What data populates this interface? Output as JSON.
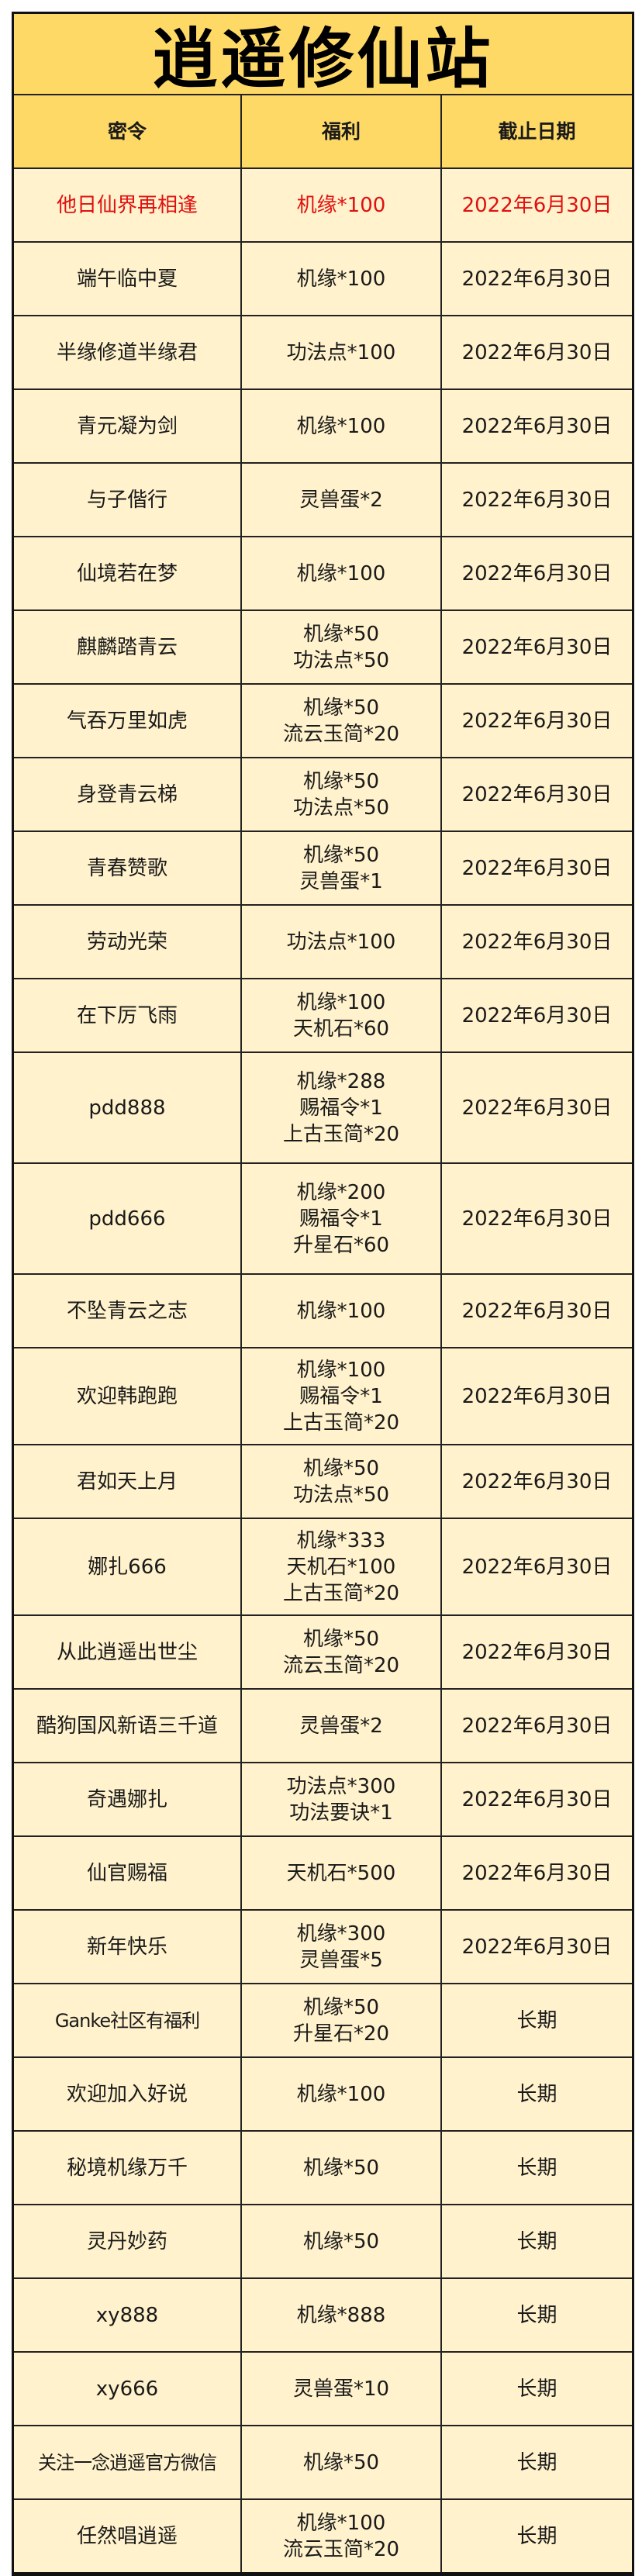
{
  "title": "逍遥修仙站",
  "headers": {
    "code": "密令",
    "reward": "福利",
    "deadline": "截止日期"
  },
  "colors": {
    "title_bg": "#FFD966",
    "row_bg": "#FFF2CC",
    "highlight_text": "#E01010"
  },
  "rows": [
    {
      "code": "他日仙界再相逢",
      "rewards": [
        "机缘*100"
      ],
      "deadline": "2022年6月30日",
      "highlight": true
    },
    {
      "code": "端午临中夏",
      "rewards": [
        "机缘*100"
      ],
      "deadline": "2022年6月30日"
    },
    {
      "code": "半缘修道半缘君",
      "rewards": [
        "功法点*100"
      ],
      "deadline": "2022年6月30日"
    },
    {
      "code": "青元凝为剑",
      "rewards": [
        "机缘*100"
      ],
      "deadline": "2022年6月30日"
    },
    {
      "code": "与子偕行",
      "rewards": [
        "灵兽蛋*2"
      ],
      "deadline": "2022年6月30日"
    },
    {
      "code": "仙境若在梦",
      "rewards": [
        "机缘*100"
      ],
      "deadline": "2022年6月30日"
    },
    {
      "code": "麒麟踏青云",
      "rewards": [
        "机缘*50",
        "功法点*50"
      ],
      "deadline": "2022年6月30日"
    },
    {
      "code": "气吞万里如虎",
      "rewards": [
        "机缘*50",
        "流云玉简*20"
      ],
      "deadline": "2022年6月30日"
    },
    {
      "code": "身登青云梯",
      "rewards": [
        "机缘*50",
        "功法点*50"
      ],
      "deadline": "2022年6月30日"
    },
    {
      "code": "青春赞歌",
      "rewards": [
        "机缘*50",
        "灵兽蛋*1"
      ],
      "deadline": "2022年6月30日"
    },
    {
      "code": "劳动光荣",
      "rewards": [
        "功法点*100"
      ],
      "deadline": "2022年6月30日"
    },
    {
      "code": "在下厉飞雨",
      "rewards": [
        "机缘*100",
        "天机石*60"
      ],
      "deadline": "2022年6月30日"
    },
    {
      "code": "pdd888",
      "rewards": [
        "机缘*288",
        "赐福令*1",
        "上古玉简*20"
      ],
      "deadline": "2022年6月30日"
    },
    {
      "code": "pdd666",
      "rewards": [
        "机缘*200",
        "赐福令*1",
        "升星石*60"
      ],
      "deadline": "2022年6月30日"
    },
    {
      "code": "不坠青云之志",
      "rewards": [
        "机缘*100"
      ],
      "deadline": "2022年6月30日"
    },
    {
      "code": "欢迎韩跑跑",
      "rewards": [
        "机缘*100",
        "赐福令*1",
        "上古玉简*20"
      ],
      "deadline": "2022年6月30日"
    },
    {
      "code": "君如天上月",
      "rewards": [
        "机缘*50",
        "功法点*50"
      ],
      "deadline": "2022年6月30日"
    },
    {
      "code": "娜扎666",
      "rewards": [
        "机缘*333",
        "天机石*100",
        "上古玉简*20"
      ],
      "deadline": "2022年6月30日"
    },
    {
      "code": "从此逍遥出世尘",
      "rewards": [
        "机缘*50",
        "流云玉简*20"
      ],
      "deadline": "2022年6月30日"
    },
    {
      "code": "酷狗国风新语三千道",
      "rewards": [
        "灵兽蛋*2"
      ],
      "deadline": "2022年6月30日"
    },
    {
      "code": "奇遇娜扎",
      "rewards": [
        "功法点*300",
        "功法要诀*1"
      ],
      "deadline": "2022年6月30日"
    },
    {
      "code": "仙官赐福",
      "rewards": [
        "天机石*500"
      ],
      "deadline": "2022年6月30日"
    },
    {
      "code": "新年快乐",
      "rewards": [
        "机缘*300",
        "灵兽蛋*5"
      ],
      "deadline": "2022年6月30日"
    },
    {
      "code": "Ganke社区有福利",
      "rewards": [
        "机缘*50",
        "升星石*20"
      ],
      "deadline": "长期"
    },
    {
      "code": "欢迎加入好说",
      "rewards": [
        "机缘*100"
      ],
      "deadline": "长期"
    },
    {
      "code": "秘境机缘万千",
      "rewards": [
        "机缘*50"
      ],
      "deadline": "长期"
    },
    {
      "code": "灵丹妙药",
      "rewards": [
        "机缘*50"
      ],
      "deadline": "长期"
    },
    {
      "code": "xy888",
      "rewards": [
        "机缘*888"
      ],
      "deadline": "长期"
    },
    {
      "code": "xy666",
      "rewards": [
        "灵兽蛋*10"
      ],
      "deadline": "长期"
    },
    {
      "code": "关注一念逍遥官方微信",
      "rewards": [
        "机缘*50"
      ],
      "deadline": "长期"
    },
    {
      "code": "任然唱逍遥",
      "rewards": [
        "机缘*100",
        "流云玉简*20"
      ],
      "deadline": "长期"
    }
  ]
}
